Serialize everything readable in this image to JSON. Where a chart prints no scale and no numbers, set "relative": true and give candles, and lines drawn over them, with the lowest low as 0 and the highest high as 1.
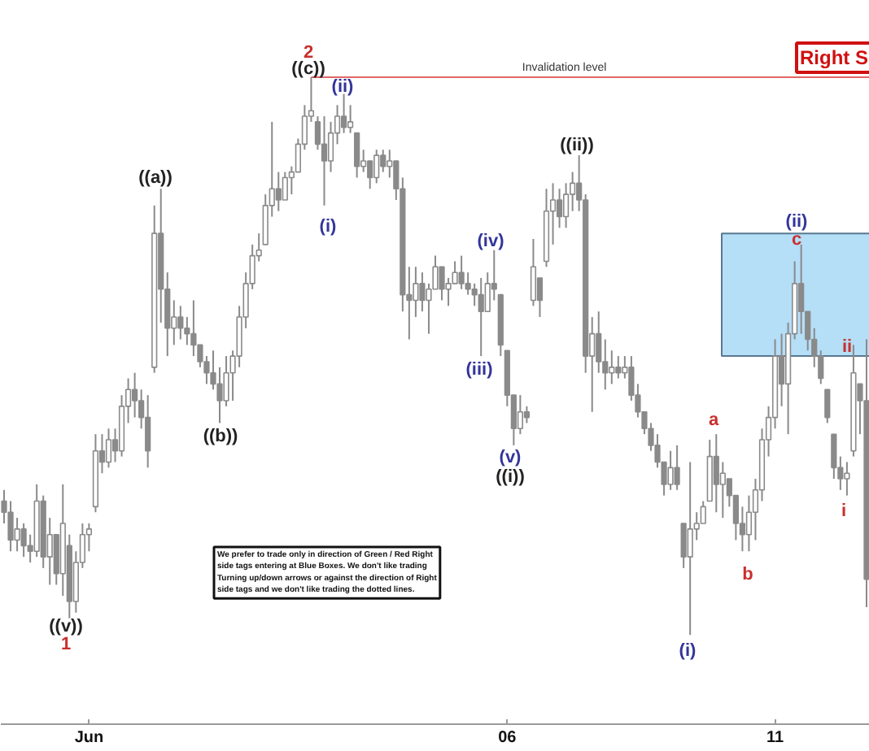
{
  "chart_data": {
    "type": "candlestick",
    "relative": true,
    "categories": [
      null,
      null,
      null,
      null,
      null,
      null,
      null,
      null,
      null,
      null,
      null,
      null,
      null,
      "Jun",
      null,
      null,
      null,
      null,
      null,
      null,
      null,
      null,
      null,
      null,
      null,
      null,
      null,
      null,
      null,
      null,
      null,
      null,
      null,
      null,
      null,
      null,
      null,
      null,
      null,
      null,
      null,
      null,
      null,
      null,
      null,
      null,
      null,
      null,
      null,
      null,
      null,
      null,
      null,
      null,
      null,
      null,
      null,
      null,
      null,
      null,
      null,
      null,
      null,
      null,
      null,
      null,
      null,
      null,
      null,
      null,
      null,
      null,
      null,
      null,
      null,
      null,
      null,
      "06",
      null,
      null,
      null,
      null,
      null,
      null,
      null,
      null,
      null,
      null,
      null,
      null,
      null,
      null,
      null,
      null,
      null,
      null,
      null,
      null,
      null,
      null,
      null,
      null,
      null,
      null,
      null,
      null,
      null,
      null,
      null,
      null,
      null,
      null,
      null,
      null,
      null,
      null,
      null,
      null,
      "11",
      null,
      null,
      null,
      null,
      null,
      null,
      null,
      null,
      null,
      null,
      null,
      null,
      null,
      null
    ],
    "ohlc": [
      [
        0.24,
        0.26,
        0.2,
        0.22
      ],
      [
        0.22,
        0.24,
        0.15,
        0.17
      ],
      [
        0.17,
        0.21,
        0.15,
        0.19
      ],
      [
        0.19,
        0.2,
        0.14,
        0.16
      ],
      [
        0.16,
        0.18,
        0.13,
        0.15
      ],
      [
        0.15,
        0.27,
        0.14,
        0.24
      ],
      [
        0.24,
        0.25,
        0.12,
        0.14
      ],
      [
        0.14,
        0.21,
        0.09,
        0.18
      ],
      [
        0.18,
        0.18,
        0.09,
        0.11
      ],
      [
        0.11,
        0.27,
        0.07,
        0.2
      ],
      [
        0.16,
        0.18,
        0.03,
        0.06
      ],
      [
        0.06,
        0.15,
        0.04,
        0.13
      ],
      [
        0.13,
        0.2,
        0.12,
        0.18
      ],
      [
        0.18,
        0.2,
        0.15,
        0.19
      ],
      [
        0.23,
        0.36,
        0.22,
        0.33
      ],
      [
        0.33,
        0.36,
        0.29,
        0.31
      ],
      [
        0.31,
        0.37,
        0.3,
        0.35
      ],
      [
        0.35,
        0.37,
        0.31,
        0.33
      ],
      [
        0.33,
        0.43,
        0.32,
        0.41
      ],
      [
        0.41,
        0.46,
        0.38,
        0.44
      ],
      [
        0.44,
        0.47,
        0.39,
        0.42
      ],
      [
        0.42,
        0.44,
        0.37,
        0.39
      ],
      [
        0.39,
        0.43,
        0.3,
        0.33
      ],
      [
        0.48,
        0.77,
        0.47,
        0.72
      ],
      [
        0.72,
        0.8,
        0.56,
        0.62
      ],
      [
        0.62,
        0.65,
        0.5,
        0.55
      ],
      [
        0.55,
        0.6,
        0.52,
        0.57
      ],
      [
        0.57,
        0.59,
        0.53,
        0.55
      ],
      [
        0.55,
        0.57,
        0.52,
        0.54
      ],
      [
        0.54,
        0.6,
        0.5,
        0.52
      ],
      [
        0.52,
        0.52,
        0.48,
        0.49
      ],
      [
        0.49,
        0.5,
        0.45,
        0.47
      ],
      [
        0.47,
        0.51,
        0.44,
        0.45
      ],
      [
        0.45,
        0.48,
        0.38,
        0.42
      ],
      [
        0.42,
        0.5,
        0.41,
        0.47
      ],
      [
        0.47,
        0.51,
        0.42,
        0.5
      ],
      [
        0.5,
        0.59,
        0.48,
        0.57
      ],
      [
        0.57,
        0.65,
        0.55,
        0.63
      ],
      [
        0.63,
        0.7,
        0.62,
        0.68
      ],
      [
        0.68,
        0.72,
        0.67,
        0.69
      ],
      [
        0.7,
        0.79,
        0.7,
        0.77
      ],
      [
        0.77,
        0.92,
        0.75,
        0.8
      ],
      [
        0.8,
        0.83,
        0.76,
        0.78
      ],
      [
        0.78,
        0.83,
        0.78,
        0.82
      ],
      [
        0.82,
        0.84,
        0.79,
        0.83
      ],
      [
        0.83,
        0.89,
        0.83,
        0.88
      ],
      [
        0.88,
        0.95,
        0.87,
        0.93
      ],
      [
        0.93,
        1,
        0.92,
        0.94
      ],
      [
        0.92,
        0.93,
        0.87,
        0.88
      ],
      [
        0.88,
        0.93,
        0.77,
        0.85
      ],
      [
        0.85,
        0.92,
        0.83,
        0.9
      ],
      [
        0.9,
        0.95,
        0.88,
        0.93
      ],
      [
        0.93,
        0.97,
        0.9,
        0.91
      ],
      [
        0.91,
        0.95,
        0.9,
        0.92
      ],
      [
        0.9,
        0.9,
        0.82,
        0.84
      ],
      [
        0.84,
        0.87,
        0.83,
        0.85
      ],
      [
        0.85,
        0.85,
        0.8,
        0.82
      ],
      [
        0.82,
        0.87,
        0.81,
        0.86
      ],
      [
        0.86,
        0.87,
        0.83,
        0.84
      ],
      [
        0.84,
        0.87,
        0.82,
        0.85
      ],
      [
        0.85,
        0.85,
        0.78,
        0.8
      ],
      [
        0.8,
        0.82,
        0.58,
        0.61
      ],
      [
        0.61,
        0.66,
        0.53,
        0.6
      ],
      [
        0.6,
        0.66,
        0.57,
        0.63
      ],
      [
        0.63,
        0.65,
        0.58,
        0.6
      ],
      [
        0.6,
        0.63,
        0.54,
        0.62
      ],
      [
        0.62,
        0.68,
        0.62,
        0.66
      ],
      [
        0.66,
        0.66,
        0.6,
        0.62
      ],
      [
        0.62,
        0.64,
        0.59,
        0.63
      ],
      [
        0.63,
        0.67,
        0.63,
        0.65
      ],
      [
        0.65,
        0.68,
        0.62,
        0.63
      ],
      [
        0.63,
        0.65,
        0.61,
        0.62
      ],
      [
        0.62,
        0.63,
        0.59,
        0.61
      ],
      [
        0.61,
        0.64,
        0.5,
        0.58
      ],
      [
        0.58,
        0.65,
        0.58,
        0.63
      ],
      [
        0.63,
        0.69,
        0.6,
        0.62
      ],
      [
        0.61,
        0.61,
        0.5,
        0.52
      ],
      [
        0.51,
        0.51,
        0.41,
        0.43
      ],
      [
        0.43,
        0.43,
        0.34,
        0.37
      ],
      [
        0.37,
        0.43,
        0.36,
        0.4
      ],
      [
        0.4,
        0.41,
        0.38,
        0.39
      ],
      [
        0.6,
        0.71,
        0.59,
        0.66
      ],
      [
        0.64,
        0.64,
        0.57,
        0.6
      ],
      [
        0.67,
        0.8,
        0.66,
        0.76
      ],
      [
        0.76,
        0.81,
        0.7,
        0.78
      ],
      [
        0.78,
        0.8,
        0.73,
        0.75
      ],
      [
        0.75,
        0.81,
        0.73,
        0.79
      ],
      [
        0.79,
        0.83,
        0.76,
        0.81
      ],
      [
        0.81,
        0.86,
        0.76,
        0.78
      ],
      [
        0.78,
        0.79,
        0.47,
        0.5
      ],
      [
        0.5,
        0.57,
        0.4,
        0.54
      ],
      [
        0.54,
        0.58,
        0.47,
        0.49
      ],
      [
        0.49,
        0.53,
        0.44,
        0.47
      ],
      [
        0.47,
        0.51,
        0.45,
        0.48
      ],
      [
        0.48,
        0.5,
        0.46,
        0.47
      ],
      [
        0.47,
        0.5,
        0.46,
        0.48
      ],
      [
        0.48,
        0.5,
        0.42,
        0.43
      ],
      [
        0.43,
        0.45,
        0.39,
        0.4
      ],
      [
        0.4,
        0.4,
        0.36,
        0.37
      ],
      [
        0.37,
        0.38,
        0.33,
        0.34
      ],
      [
        0.34,
        0.36,
        0.3,
        0.31
      ],
      [
        0.31,
        0.31,
        0.25,
        0.27
      ],
      [
        0.27,
        0.33,
        0.26,
        0.3
      ],
      [
        0.3,
        0.34,
        0.26,
        0.27
      ],
      [
        0.2,
        0.2,
        0.12,
        0.14
      ],
      [
        0.14,
        0.31,
        0,
        0.19
      ],
      [
        0.19,
        0.22,
        0.17,
        0.2
      ],
      [
        0.2,
        0.24,
        0.2,
        0.23
      ],
      [
        0.24,
        0.35,
        0.24,
        0.32
      ],
      [
        0.32,
        0.36,
        0.22,
        0.27
      ],
      [
        0.27,
        0.31,
        0.21,
        0.29
      ],
      [
        0.28,
        0.28,
        0.23,
        0.25
      ],
      [
        0.25,
        0.25,
        0.17,
        0.2
      ],
      [
        0.2,
        0.23,
        0.15,
        0.18
      ],
      [
        0.18,
        0.25,
        0.15,
        0.22
      ],
      [
        0.22,
        0.28,
        0.17,
        0.26
      ],
      [
        0.26,
        0.37,
        0.24,
        0.35
      ],
      [
        0.35,
        0.41,
        0.32,
        0.39
      ],
      [
        0.39,
        0.53,
        0.37,
        0.5
      ],
      [
        0.5,
        0.54,
        0.41,
        0.45
      ],
      [
        0.45,
        0.56,
        0.36,
        0.54
      ],
      [
        0.54,
        0.67,
        0.53,
        0.63
      ],
      [
        0.63,
        0.7,
        0.54,
        0.58
      ],
      [
        0.58,
        0.58,
        0.51,
        0.53
      ],
      [
        0.53,
        0.55,
        0.48,
        0.5
      ],
      [
        0.5,
        0.51,
        0.45,
        0.46
      ],
      [
        0.44,
        0.44,
        0.38,
        0.39
      ],
      [
        0.36,
        0.36,
        0.28,
        0.3
      ],
      [
        0.3,
        0.32,
        0.26,
        0.28
      ],
      [
        0.28,
        0.31,
        0.25,
        0.29
      ],
      [
        0.33,
        0.52,
        0.32,
        0.47
      ],
      [
        0.45,
        0.45,
        0.36,
        0.42
      ],
      [
        0.42,
        0.53,
        0.05,
        0.1
      ]
    ],
    "ref_lines": [
      {
        "axis": "y",
        "value": 1,
        "label": "Invalidation level",
        "color": "#e06666"
      }
    ],
    "bands": [
      {
        "axis": "y",
        "from": 0.5,
        "to": 0.72,
        "color": "#b5def7"
      }
    ],
    "annotations": [
      "((a))",
      "((b))",
      "2",
      "((c))",
      "(i)",
      "(ii)",
      "(iii)",
      "(iv)",
      "(v)",
      "((i))",
      "((ii))",
      "(i)",
      "a",
      "b",
      "(ii)",
      "c",
      "i",
      "ii",
      "((v))",
      "1",
      "Right S",
      "We prefer to trade only in direction of Green / Red Right side tags entering at Blue Boxes. We don't like trading Turning up/down arrows or against the direction of Right side tags and we don't like trading the dotted lines."
    ]
  }
}
